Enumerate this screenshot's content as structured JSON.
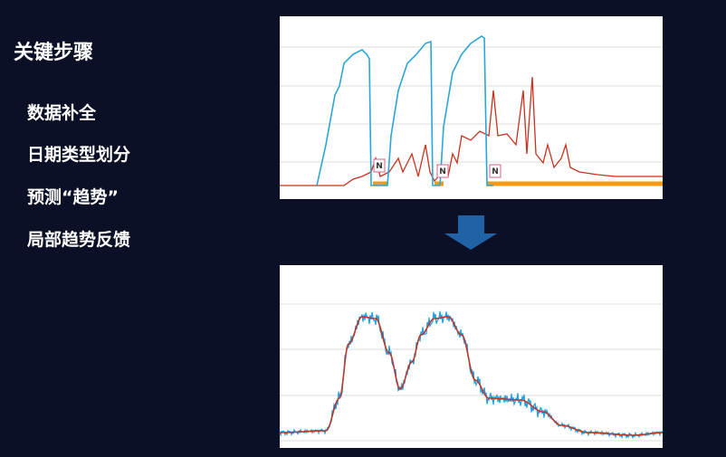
{
  "title": "关键步骤",
  "steps": [
    "数据补全",
    "日期类型划分",
    "预测“趋势”",
    "局部趋势反馈"
  ],
  "top_chart": {
    "markers": [
      "N",
      "N",
      "N"
    ]
  }
}
